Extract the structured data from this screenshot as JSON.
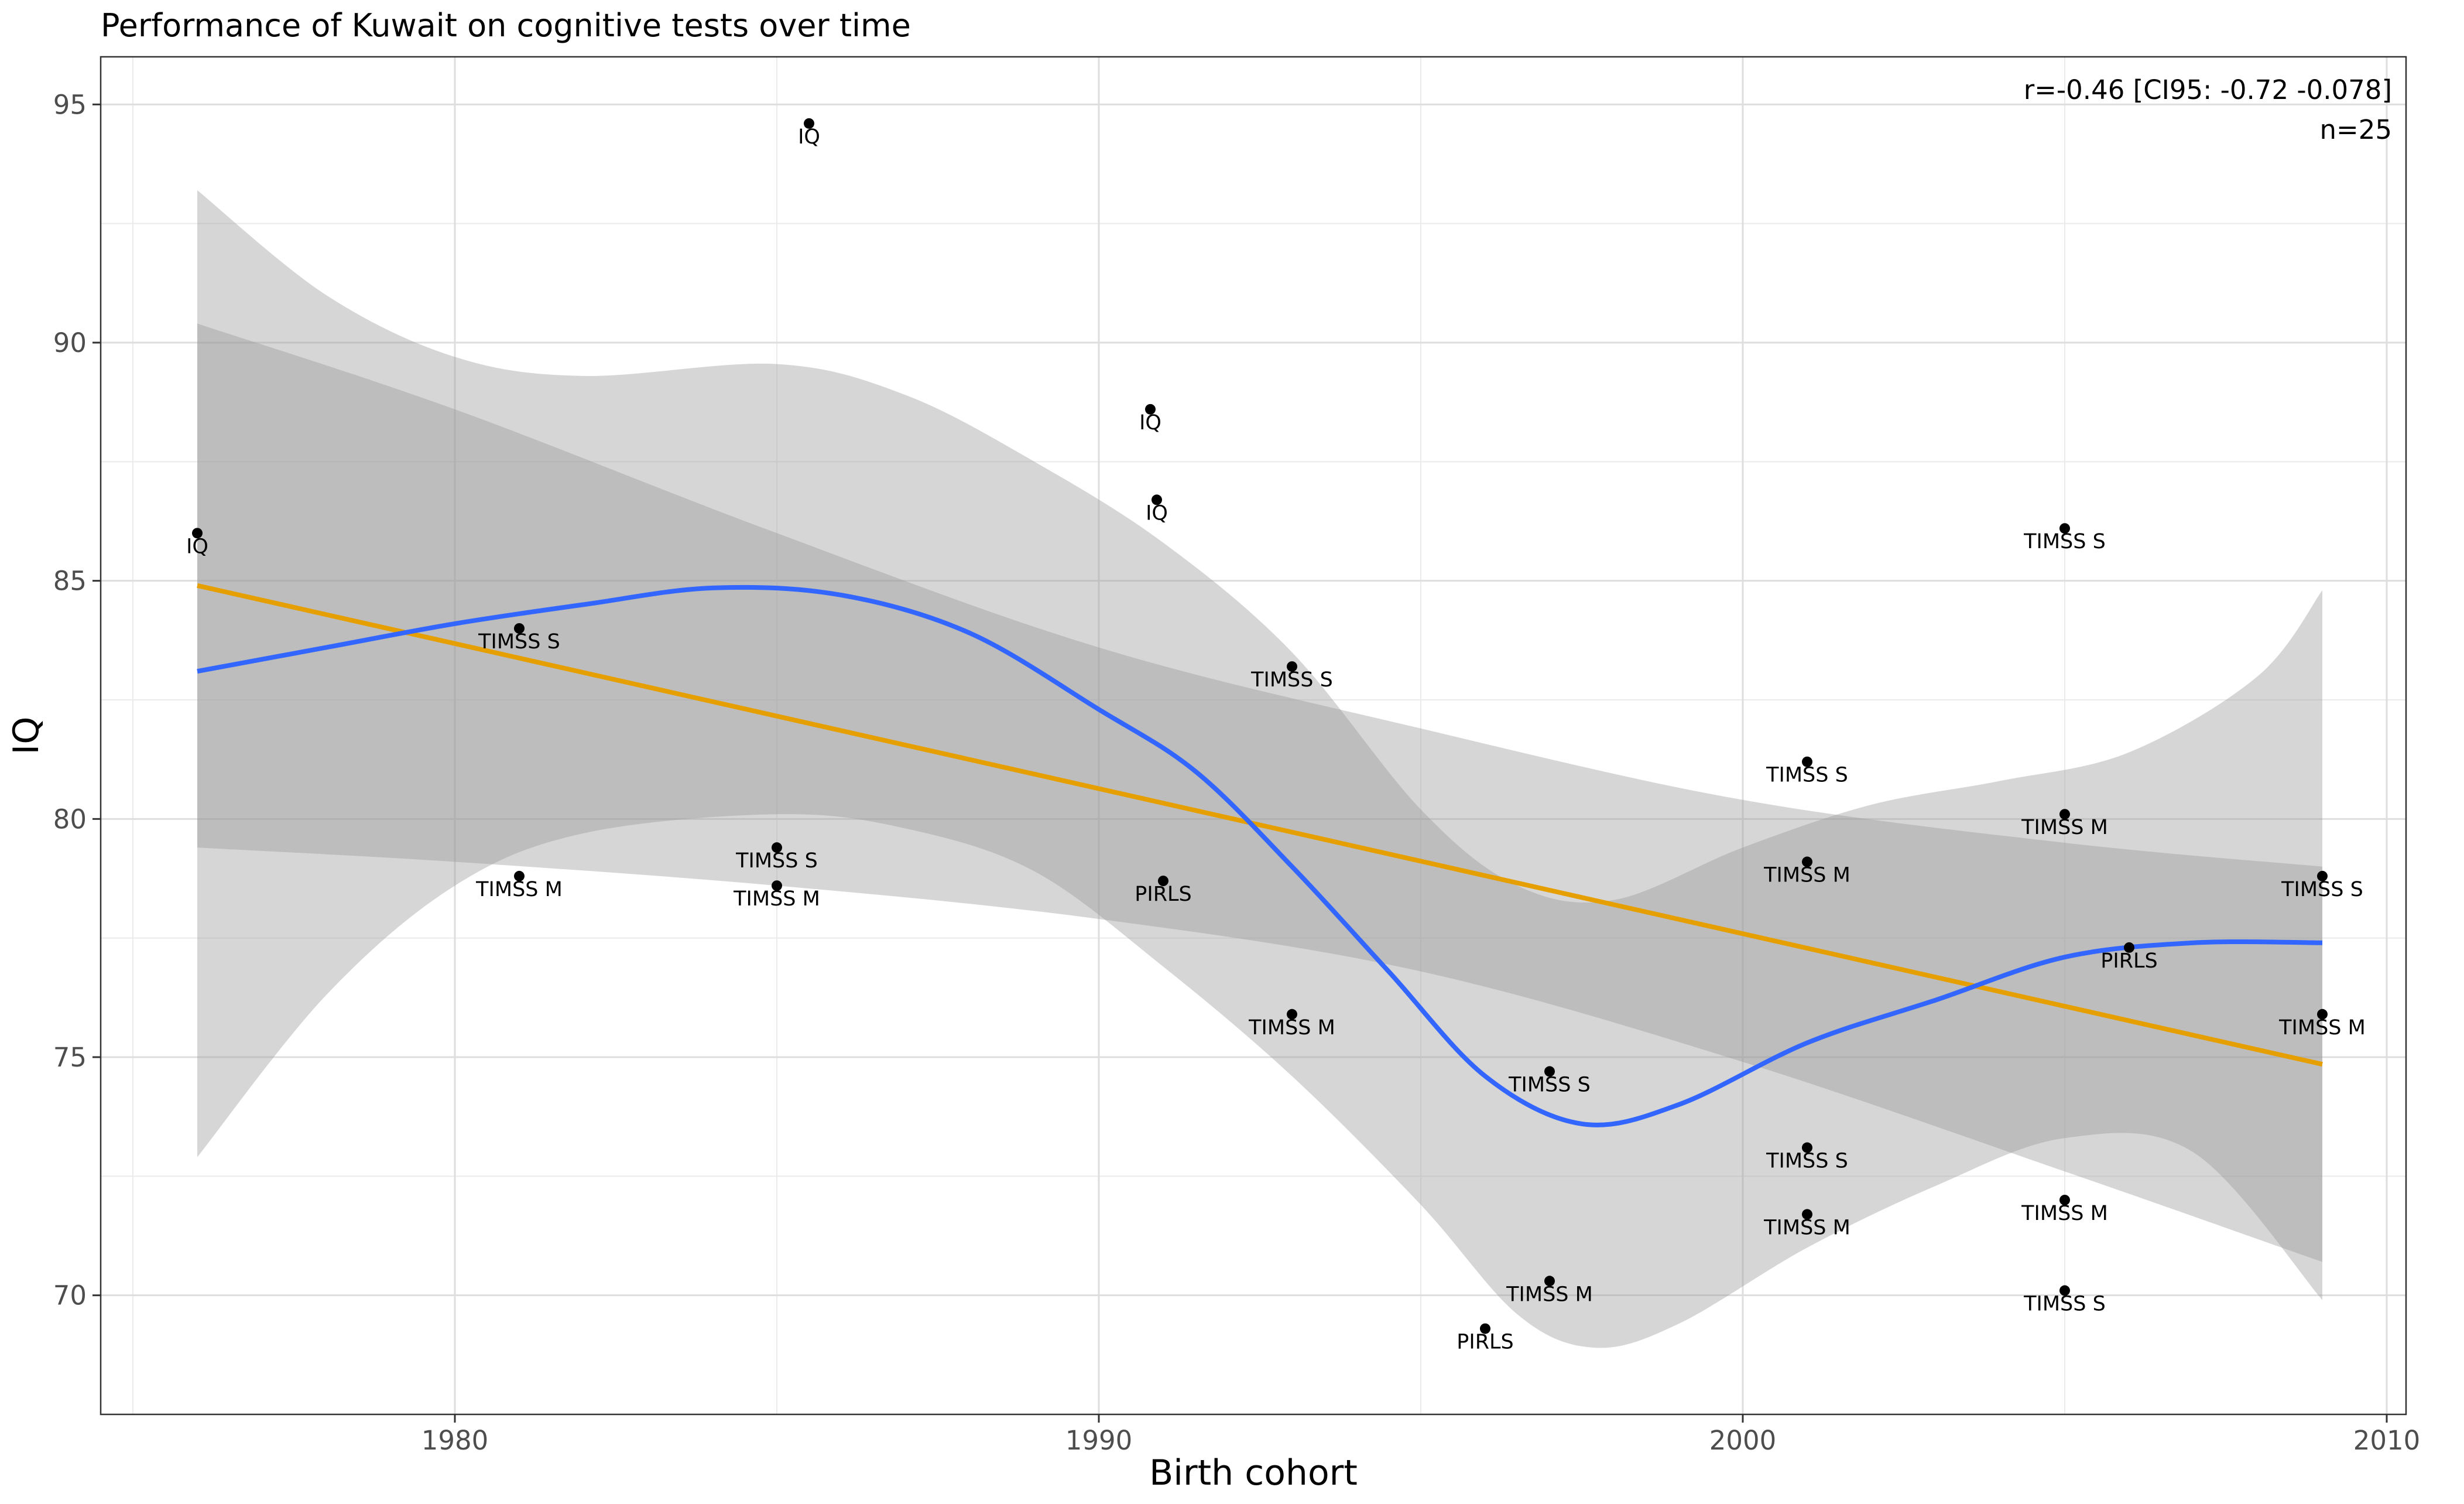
{
  "chart_data": {
    "type": "scatter",
    "title": "Performance of Kuwait on cognitive tests over time",
    "xlabel": "Birth cohort",
    "ylabel": "IQ",
    "xlim": [
      1974.5,
      2010.3
    ],
    "ylim": [
      67.5,
      96.0
    ],
    "x_ticks": [
      1980,
      1990,
      2000,
      2010
    ],
    "y_ticks": [
      70,
      75,
      80,
      85,
      90,
      95
    ],
    "grid": true,
    "annotation_lines": [
      "r=-0.46 [CI95: -0.72 -0.078]",
      "n=25"
    ],
    "points": [
      {
        "x": 1976.0,
        "y": 86.0,
        "label": "IQ"
      },
      {
        "x": 1985.5,
        "y": 94.6,
        "label": "IQ"
      },
      {
        "x": 1990.8,
        "y": 88.6,
        "label": "IQ"
      },
      {
        "x": 1990.9,
        "y": 86.7,
        "label": "IQ"
      },
      {
        "x": 1981.0,
        "y": 84.0,
        "label": "TIMSS S"
      },
      {
        "x": 1981.0,
        "y": 78.8,
        "label": "TIMSS M"
      },
      {
        "x": 1985.0,
        "y": 79.4,
        "label": "TIMSS S"
      },
      {
        "x": 1985.0,
        "y": 78.6,
        "label": "TIMSS M"
      },
      {
        "x": 1991.0,
        "y": 78.7,
        "label": "PIRLS"
      },
      {
        "x": 1993.0,
        "y": 83.2,
        "label": "TIMSS S"
      },
      {
        "x": 1993.0,
        "y": 75.9,
        "label": "TIMSS M"
      },
      {
        "x": 1996.0,
        "y": 69.3,
        "label": "PIRLS"
      },
      {
        "x": 1997.0,
        "y": 74.7,
        "label": "TIMSS S"
      },
      {
        "x": 1997.0,
        "y": 70.3,
        "label": "TIMSS M"
      },
      {
        "x": 2001.0,
        "y": 81.2,
        "label": "TIMSS S"
      },
      {
        "x": 2001.0,
        "y": 79.1,
        "label": "TIMSS M"
      },
      {
        "x": 2001.0,
        "y": 73.1,
        "label": "TIMSS S"
      },
      {
        "x": 2001.0,
        "y": 71.7,
        "label": "TIMSS M"
      },
      {
        "x": 2005.0,
        "y": 86.1,
        "label": "TIMSS S"
      },
      {
        "x": 2005.0,
        "y": 80.1,
        "label": "TIMSS M"
      },
      {
        "x": 2005.0,
        "y": 72.0,
        "label": "TIMSS M"
      },
      {
        "x": 2005.0,
        "y": 70.1,
        "label": "TIMSS S"
      },
      {
        "x": 2006.0,
        "y": 77.3,
        "label": "PIRLS"
      },
      {
        "x": 2009.0,
        "y": 78.8,
        "label": "TIMSS S"
      },
      {
        "x": 2009.0,
        "y": 75.9,
        "label": "TIMSS M"
      }
    ],
    "linear_fit": {
      "color": "#E69F00",
      "points": [
        {
          "x": 1976.0,
          "y": 84.9
        },
        {
          "x": 2009.0,
          "y": 74.85
        }
      ],
      "ci_upper": [
        {
          "x": 1976.0,
          "y": 90.4
        },
        {
          "x": 1980.0,
          "y": 88.6
        },
        {
          "x": 1985.0,
          "y": 86.0
        },
        {
          "x": 1990.0,
          "y": 83.6
        },
        {
          "x": 1995.0,
          "y": 81.9
        },
        {
          "x": 2000.0,
          "y": 80.4
        },
        {
          "x": 2005.0,
          "y": 79.5
        },
        {
          "x": 2009.0,
          "y": 79.0
        }
      ],
      "ci_lower": [
        {
          "x": 1976.0,
          "y": 79.4
        },
        {
          "x": 1980.0,
          "y": 79.1
        },
        {
          "x": 1985.0,
          "y": 78.6
        },
        {
          "x": 1990.0,
          "y": 77.9
        },
        {
          "x": 1995.0,
          "y": 76.8
        },
        {
          "x": 2000.0,
          "y": 74.9
        },
        {
          "x": 2005.0,
          "y": 72.6
        },
        {
          "x": 2009.0,
          "y": 70.7
        }
      ]
    },
    "loess_fit": {
      "color": "#3366FF",
      "points": [
        {
          "x": 1976.0,
          "y": 83.1
        },
        {
          "x": 1978.0,
          "y": 83.6
        },
        {
          "x": 1980.0,
          "y": 84.1
        },
        {
          "x": 1982.0,
          "y": 84.5
        },
        {
          "x": 1984.0,
          "y": 84.85
        },
        {
          "x": 1986.0,
          "y": 84.7
        },
        {
          "x": 1988.0,
          "y": 83.9
        },
        {
          "x": 1990.0,
          "y": 82.3
        },
        {
          "x": 1991.5,
          "y": 81.0
        },
        {
          "x": 1993.0,
          "y": 79.0
        },
        {
          "x": 1994.5,
          "y": 76.8
        },
        {
          "x": 1996.0,
          "y": 74.6
        },
        {
          "x": 1997.5,
          "y": 73.6
        },
        {
          "x": 1999.0,
          "y": 74.0
        },
        {
          "x": 2001.0,
          "y": 75.3
        },
        {
          "x": 2003.0,
          "y": 76.2
        },
        {
          "x": 2005.0,
          "y": 77.1
        },
        {
          "x": 2007.0,
          "y": 77.4
        },
        {
          "x": 2009.0,
          "y": 77.4
        }
      ],
      "ci_upper": [
        {
          "x": 1976.0,
          "y": 93.2
        },
        {
          "x": 1978.0,
          "y": 91.0
        },
        {
          "x": 1980.0,
          "y": 89.7
        },
        {
          "x": 1982.0,
          "y": 89.3
        },
        {
          "x": 1985.0,
          "y": 89.55
        },
        {
          "x": 1987.0,
          "y": 88.9
        },
        {
          "x": 1989.0,
          "y": 87.5
        },
        {
          "x": 1991.0,
          "y": 85.8
        },
        {
          "x": 1993.0,
          "y": 83.5
        },
        {
          "x": 1995.0,
          "y": 80.2
        },
        {
          "x": 1996.5,
          "y": 78.6
        },
        {
          "x": 1998.0,
          "y": 78.3
        },
        {
          "x": 2000.0,
          "y": 79.4
        },
        {
          "x": 2002.0,
          "y": 80.3
        },
        {
          "x": 2004.0,
          "y": 80.8
        },
        {
          "x": 2006.0,
          "y": 81.4
        },
        {
          "x": 2008.0,
          "y": 83.0
        },
        {
          "x": 2009.0,
          "y": 84.8
        }
      ],
      "ci_lower": [
        {
          "x": 1976.0,
          "y": 72.9
        },
        {
          "x": 1978.0,
          "y": 76.3
        },
        {
          "x": 1980.0,
          "y": 78.6
        },
        {
          "x": 1982.0,
          "y": 79.7
        },
        {
          "x": 1985.0,
          "y": 80.1
        },
        {
          "x": 1987.0,
          "y": 79.8
        },
        {
          "x": 1989.0,
          "y": 78.9
        },
        {
          "x": 1991.0,
          "y": 76.9
        },
        {
          "x": 1993.0,
          "y": 74.6
        },
        {
          "x": 1995.0,
          "y": 71.9
        },
        {
          "x": 1996.5,
          "y": 69.6
        },
        {
          "x": 1997.7,
          "y": 68.9
        },
        {
          "x": 1999.0,
          "y": 69.4
        },
        {
          "x": 2001.0,
          "y": 71.0
        },
        {
          "x": 2003.0,
          "y": 72.3
        },
        {
          "x": 2005.0,
          "y": 73.3
        },
        {
          "x": 2007.0,
          "y": 73.0
        },
        {
          "x": 2009.0,
          "y": 69.9
        }
      ]
    },
    "band_color": "#999999",
    "point_color": "#000000"
  }
}
